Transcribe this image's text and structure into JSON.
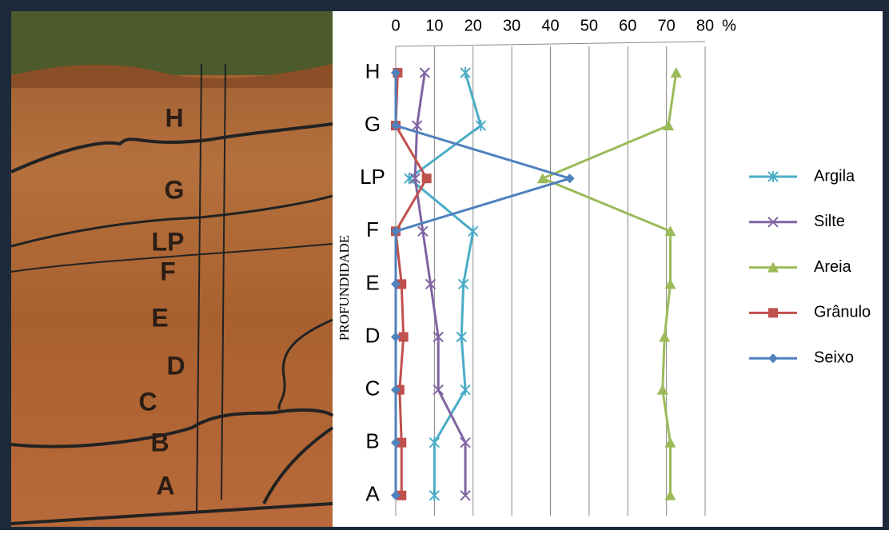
{
  "photo": {
    "labels": [
      "H",
      "G",
      "LP",
      "F",
      "E",
      "D",
      "C",
      "B",
      "A"
    ]
  },
  "chart_data": {
    "type": "line",
    "x_unit": "%",
    "ylabel": "PROFUNDIDADE",
    "categories": [
      "H",
      "G",
      "LP",
      "F",
      "E",
      "D",
      "C",
      "B",
      "A"
    ],
    "xlim": [
      0,
      80
    ],
    "xticks": [
      0,
      10,
      20,
      30,
      40,
      50,
      60,
      70,
      80
    ],
    "grid": true,
    "series": [
      {
        "name": "Argila",
        "color": "#4bacc6",
        "marker": "star",
        "values": [
          18,
          22,
          3.5,
          20,
          17.5,
          17,
          18,
          10,
          10
        ]
      },
      {
        "name": "Silte",
        "color": "#8064a2",
        "marker": "x",
        "values": [
          7.5,
          5.5,
          5,
          7,
          9,
          11,
          11,
          18,
          18
        ]
      },
      {
        "name": "Areia",
        "color": "#9bbb59",
        "marker": "triangle",
        "values": [
          72.5,
          70.5,
          38,
          71,
          71,
          69.5,
          69,
          71,
          71
        ]
      },
      {
        "name": "Grânulo",
        "color": "#c0504d",
        "marker": "square",
        "values": [
          0.5,
          0,
          8,
          0,
          1.5,
          2,
          1,
          1.5,
          1.5
        ]
      },
      {
        "name": "Seixo",
        "color": "#4f81bd",
        "marker": "diamond",
        "values": [
          0,
          0,
          45,
          0,
          0,
          0,
          0,
          0,
          0
        ]
      }
    ]
  }
}
